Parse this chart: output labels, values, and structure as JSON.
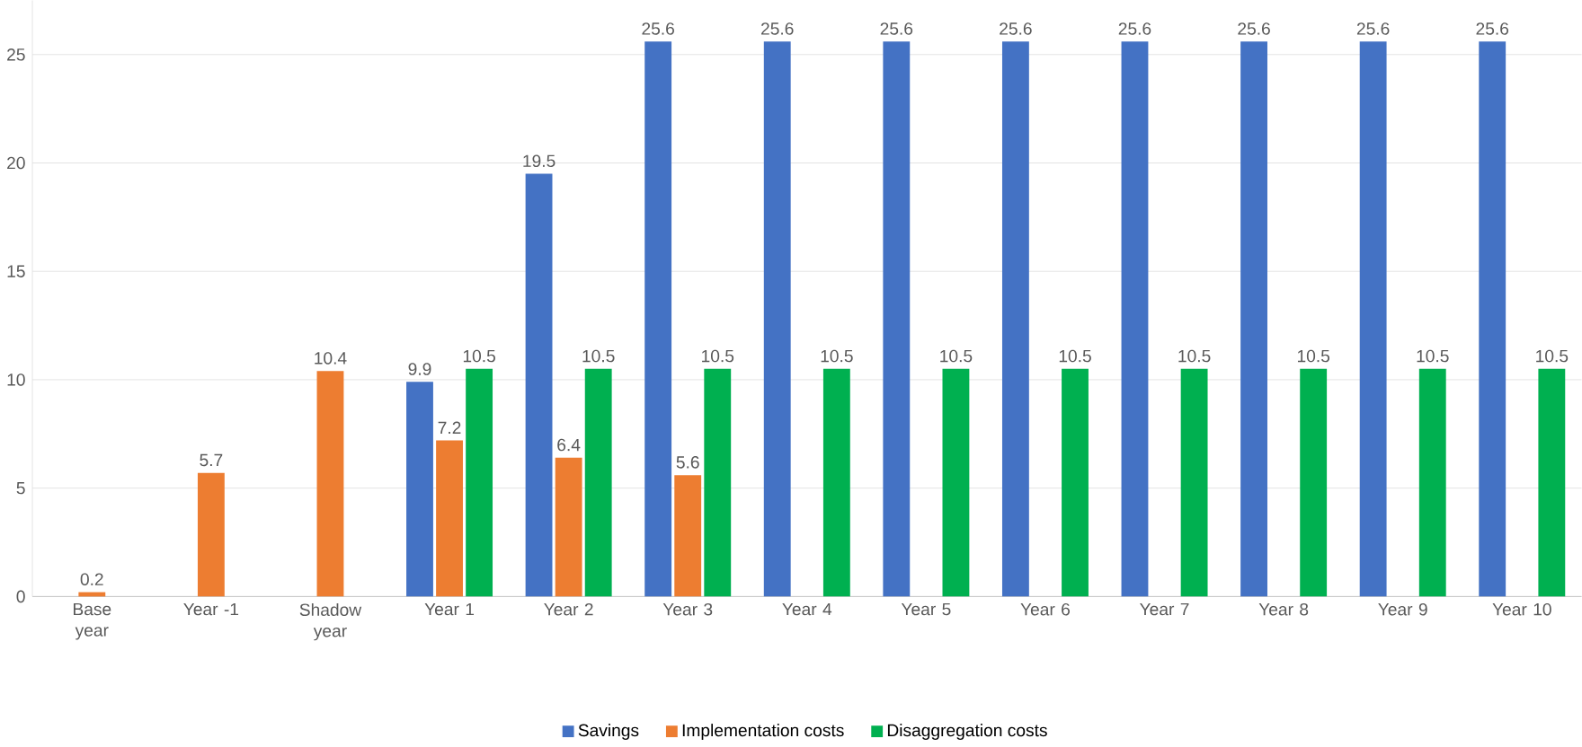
{
  "chart_data": {
    "type": "bar",
    "categories": [
      "Base year",
      "Year -1",
      "Shadow year",
      "Year 1",
      "Year 2",
      "Year 3",
      "Year 4",
      "Year 5",
      "Year 6",
      "Year 7",
      "Year 8",
      "Year 9",
      "Year 10"
    ],
    "series": [
      {
        "name": "Savings",
        "color": "#4472c4",
        "values": [
          null,
          null,
          null,
          9.9,
          19.5,
          25.6,
          25.6,
          25.6,
          25.6,
          25.6,
          25.6,
          25.6,
          25.6
        ]
      },
      {
        "name": "Implementation costs",
        "color": "#ed7d31",
        "values": [
          0.2,
          5.7,
          10.4,
          7.2,
          6.4,
          5.6,
          null,
          null,
          null,
          null,
          null,
          null,
          null
        ]
      },
      {
        "name": "Disaggregation costs",
        "color": "#00b050",
        "values": [
          null,
          null,
          null,
          10.5,
          10.5,
          10.5,
          10.5,
          10.5,
          10.5,
          10.5,
          10.5,
          10.5,
          10.5
        ]
      }
    ],
    "ylim": [
      0,
      27.5
    ],
    "yticks": [
      0,
      5,
      10,
      15,
      20,
      25
    ],
    "grid": "y",
    "legend": "bottom",
    "data_labels": true
  }
}
